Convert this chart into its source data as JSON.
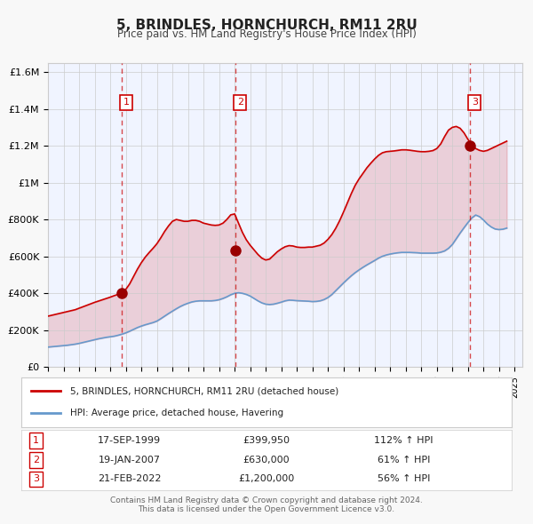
{
  "title": "5, BRINDLES, HORNCHURCH, RM11 2RU",
  "subtitle": "Price paid vs. HM Land Registry's House Price Index (HPI)",
  "legend_line1": "5, BRINDLES, HORNCHURCH, RM11 2RU (detached house)",
  "legend_line2": "HPI: Average price, detached house, Havering",
  "footer1": "Contains HM Land Registry data © Crown copyright and database right 2024.",
  "footer2": "This data is licensed under the Open Government Licence v3.0.",
  "sale_color": "#cc0000",
  "hpi_color": "#6699cc",
  "background_color": "#f0f4ff",
  "plot_bg": "#ffffff",
  "grid_color": "#cccccc",
  "vline_color": "#cc0000",
  "marker_color": "#990000",
  "ylim": [
    0,
    1650000
  ],
  "yticks": [
    0,
    200000,
    400000,
    600000,
    800000,
    1000000,
    1200000,
    1400000,
    1600000
  ],
  "ytick_labels": [
    "£0",
    "£200K",
    "£400K",
    "£600K",
    "£800K",
    "£1M",
    "£1.2M",
    "£1.4M",
    "£1.6M"
  ],
  "xmin": 1995.0,
  "xmax": 2025.5,
  "sales": [
    {
      "label": "1",
      "date_num": 1999.72,
      "price": 399950,
      "date_str": "17-SEP-1999",
      "price_str": "£399,950",
      "pct": "112% ↑ HPI"
    },
    {
      "label": "2",
      "date_num": 2007.05,
      "price": 630000,
      "date_str": "19-JAN-2007",
      "price_str": "£630,000",
      "pct": "61% ↑ HPI"
    },
    {
      "label": "3",
      "date_num": 2022.13,
      "price": 1200000,
      "date_str": "21-FEB-2022",
      "price_str": "£1,200,000",
      "pct": "56% ↑ HPI"
    }
  ],
  "hpi_x": [
    1995.0,
    1995.25,
    1995.5,
    1995.75,
    1996.0,
    1996.25,
    1996.5,
    1996.75,
    1997.0,
    1997.25,
    1997.5,
    1997.75,
    1998.0,
    1998.25,
    1998.5,
    1998.75,
    1999.0,
    1999.25,
    1999.5,
    1999.75,
    2000.0,
    2000.25,
    2000.5,
    2000.75,
    2001.0,
    2001.25,
    2001.5,
    2001.75,
    2002.0,
    2002.25,
    2002.5,
    2002.75,
    2003.0,
    2003.25,
    2003.5,
    2003.75,
    2004.0,
    2004.25,
    2004.5,
    2004.75,
    2005.0,
    2005.25,
    2005.5,
    2005.75,
    2006.0,
    2006.25,
    2006.5,
    2006.75,
    2007.0,
    2007.25,
    2007.5,
    2007.75,
    2008.0,
    2008.25,
    2008.5,
    2008.75,
    2009.0,
    2009.25,
    2009.5,
    2009.75,
    2010.0,
    2010.25,
    2010.5,
    2010.75,
    2011.0,
    2011.25,
    2011.5,
    2011.75,
    2012.0,
    2012.25,
    2012.5,
    2012.75,
    2013.0,
    2013.25,
    2013.5,
    2013.75,
    2014.0,
    2014.25,
    2014.5,
    2014.75,
    2015.0,
    2015.25,
    2015.5,
    2015.75,
    2016.0,
    2016.25,
    2016.5,
    2016.75,
    2017.0,
    2017.25,
    2017.5,
    2017.75,
    2018.0,
    2018.25,
    2018.5,
    2018.75,
    2019.0,
    2019.25,
    2019.5,
    2019.75,
    2020.0,
    2020.25,
    2020.5,
    2020.75,
    2021.0,
    2021.25,
    2021.5,
    2021.75,
    2022.0,
    2022.25,
    2022.5,
    2022.75,
    2023.0,
    2023.25,
    2023.5,
    2023.75,
    2024.0,
    2024.25,
    2024.5
  ],
  "hpi_y": [
    107000,
    109000,
    111000,
    113000,
    115000,
    117000,
    120000,
    123000,
    127000,
    132000,
    137000,
    142000,
    147000,
    152000,
    156000,
    160000,
    163000,
    166000,
    171000,
    177000,
    184000,
    193000,
    203000,
    213000,
    221000,
    228000,
    234000,
    240000,
    248000,
    261000,
    275000,
    289000,
    302000,
    315000,
    327000,
    337000,
    345000,
    352000,
    356000,
    358000,
    358000,
    358000,
    358000,
    360000,
    364000,
    371000,
    380000,
    391000,
    399000,
    402000,
    399000,
    393000,
    384000,
    371000,
    358000,
    347000,
    340000,
    338000,
    340000,
    345000,
    351000,
    358000,
    362000,
    361000,
    359000,
    358000,
    357000,
    356000,
    354000,
    355000,
    358000,
    365000,
    376000,
    392000,
    413000,
    434000,
    455000,
    475000,
    494000,
    511000,
    526000,
    540000,
    553000,
    565000,
    577000,
    590000,
    600000,
    607000,
    612000,
    616000,
    619000,
    621000,
    621000,
    621000,
    620000,
    619000,
    617000,
    617000,
    617000,
    617000,
    618000,
    622000,
    629000,
    643000,
    664000,
    695000,
    726000,
    755000,
    783000,
    808000,
    824000,
    815000,
    797000,
    775000,
    759000,
    748000,
    745000,
    747000,
    753000
  ],
  "sale_x": [
    1995.0,
    1995.25,
    1995.5,
    1995.75,
    1996.0,
    1996.25,
    1996.5,
    1996.75,
    1997.0,
    1997.25,
    1997.5,
    1997.75,
    1998.0,
    1998.25,
    1998.5,
    1998.75,
    1999.0,
    1999.25,
    1999.5,
    1999.75,
    2000.0,
    2000.25,
    2000.5,
    2000.75,
    2001.0,
    2001.25,
    2001.5,
    2001.75,
    2002.0,
    2002.25,
    2002.5,
    2002.75,
    2003.0,
    2003.25,
    2003.5,
    2003.75,
    2004.0,
    2004.25,
    2004.5,
    2004.75,
    2005.0,
    2005.25,
    2005.5,
    2005.75,
    2006.0,
    2006.25,
    2006.5,
    2006.75,
    2007.0,
    2007.25,
    2007.5,
    2007.75,
    2008.0,
    2008.25,
    2008.5,
    2008.75,
    2009.0,
    2009.25,
    2009.5,
    2009.75,
    2010.0,
    2010.25,
    2010.5,
    2010.75,
    2011.0,
    2011.25,
    2011.5,
    2011.75,
    2012.0,
    2012.25,
    2012.5,
    2012.75,
    2013.0,
    2013.25,
    2013.5,
    2013.75,
    2014.0,
    2014.25,
    2014.5,
    2014.75,
    2015.0,
    2015.25,
    2015.5,
    2015.75,
    2016.0,
    2016.25,
    2016.5,
    2016.75,
    2017.0,
    2017.25,
    2017.5,
    2017.75,
    2018.0,
    2018.25,
    2018.5,
    2018.75,
    2019.0,
    2019.25,
    2019.5,
    2019.75,
    2020.0,
    2020.25,
    2020.5,
    2020.75,
    2021.0,
    2021.25,
    2021.5,
    2021.75,
    2022.0,
    2022.25,
    2022.5,
    2022.75,
    2023.0,
    2023.25,
    2023.5,
    2023.75,
    2024.0,
    2024.25,
    2024.5
  ],
  "sale_y": [
    275000,
    280000,
    285000,
    290000,
    295000,
    300000,
    305000,
    310000,
    318000,
    326000,
    334000,
    342000,
    350000,
    357000,
    364000,
    371000,
    378000,
    386000,
    393000,
    399950,
    420000,
    450000,
    490000,
    530000,
    565000,
    595000,
    620000,
    643000,
    668000,
    700000,
    735000,
    765000,
    790000,
    800000,
    795000,
    790000,
    790000,
    795000,
    795000,
    790000,
    780000,
    775000,
    770000,
    768000,
    770000,
    780000,
    800000,
    825000,
    830000,
    780000,
    730000,
    690000,
    660000,
    635000,
    610000,
    590000,
    580000,
    585000,
    605000,
    625000,
    640000,
    652000,
    658000,
    656000,
    650000,
    648000,
    648000,
    650000,
    650000,
    655000,
    660000,
    672000,
    692000,
    718000,
    752000,
    793000,
    840000,
    890000,
    940000,
    985000,
    1020000,
    1050000,
    1080000,
    1105000,
    1128000,
    1148000,
    1162000,
    1168000,
    1170000,
    1172000,
    1175000,
    1178000,
    1178000,
    1176000,
    1173000,
    1170000,
    1168000,
    1168000,
    1170000,
    1174000,
    1185000,
    1210000,
    1250000,
    1285000,
    1300000,
    1305000,
    1295000,
    1270000,
    1235000,
    1205000,
    1185000,
    1175000,
    1170000,
    1175000,
    1185000,
    1195000,
    1205000,
    1215000,
    1225000
  ]
}
